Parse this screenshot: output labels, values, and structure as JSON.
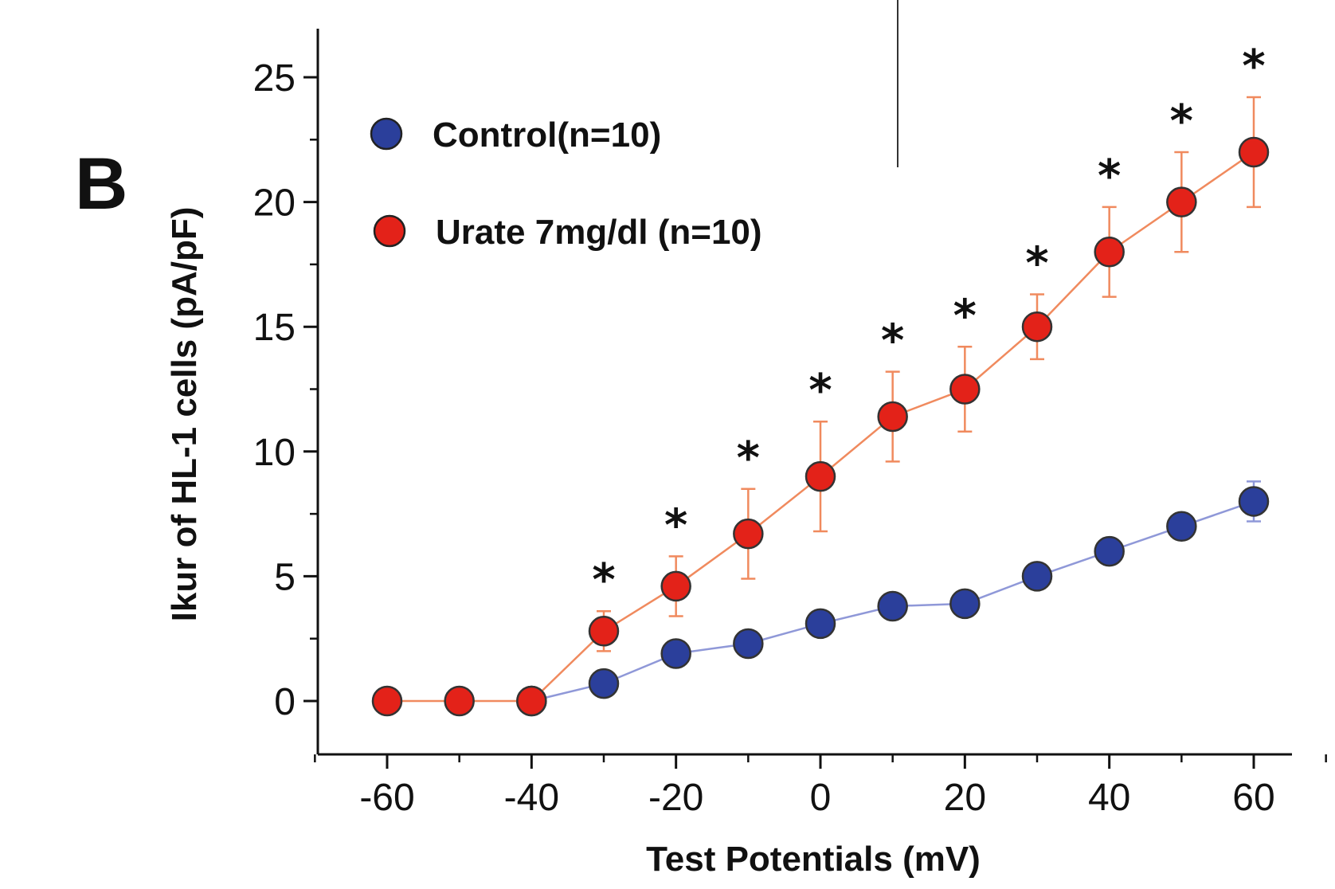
{
  "panel_label": "B",
  "chart_data": {
    "type": "line",
    "title": "",
    "xlabel": "Test Potentials (mV)",
    "ylabel": "Ikur of HL-1 cells (pA/pF)",
    "x": [
      -60,
      -50,
      -40,
      -30,
      -20,
      -10,
      0,
      10,
      20,
      30,
      40,
      50,
      60
    ],
    "xlim": [
      -70,
      70
    ],
    "ylim": [
      -2,
      27
    ],
    "x_ticks": [
      -60,
      -40,
      -20,
      0,
      20,
      40,
      60
    ],
    "x_tick_labels": [
      "-60",
      "-40",
      "-20",
      "0",
      "20",
      "40",
      "60"
    ],
    "y_ticks": [
      0,
      5,
      10,
      15,
      20,
      25
    ],
    "y_tick_labels": [
      "0",
      "5",
      "10",
      "15",
      "20",
      "25"
    ],
    "grid": false,
    "legend_position": "top-left",
    "significance_marker": "*",
    "series": [
      {
        "name": "Control(n=10)",
        "color": "#2b3f9b",
        "line_color": "#8f98d8",
        "values": [
          null,
          null,
          0,
          0.7,
          1.9,
          2.3,
          3.1,
          3.8,
          3.9,
          5.0,
          6.0,
          7.0,
          8.0
        ],
        "errors": [
          null,
          null,
          0,
          0.3,
          0.5,
          0.5,
          0.5,
          0.5,
          0.5,
          0.5,
          0.5,
          0.5,
          0.8
        ]
      },
      {
        "name": "Urate 7mg/dl (n=10)",
        "color": "#e32219",
        "line_color": "#f08a5e",
        "values": [
          0,
          0,
          0,
          2.8,
          4.6,
          6.7,
          9.0,
          11.4,
          12.5,
          15.0,
          18.0,
          20.0,
          22.0
        ],
        "errors": [
          0,
          0,
          0,
          0.8,
          1.2,
          1.8,
          2.2,
          1.8,
          1.7,
          1.3,
          1.8,
          2.0,
          2.2
        ],
        "significant": [
          false,
          false,
          false,
          true,
          true,
          true,
          true,
          true,
          true,
          true,
          true,
          true,
          true
        ]
      }
    ]
  }
}
